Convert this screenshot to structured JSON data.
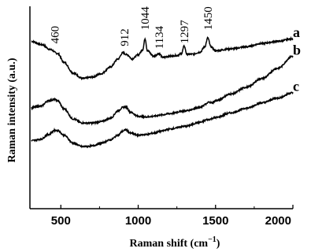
{
  "chart_data": {
    "type": "line",
    "xlabel": "Raman shift (cm",
    "xlabel_sup": "−1",
    "xlabel_close": ")",
    "ylabel": "Raman intensity (a.u.)",
    "xlim": [
      300,
      2000
    ],
    "ylim": [
      0,
      300
    ],
    "x_ticks": [
      {
        "value": 500,
        "label": "500"
      },
      {
        "value": 1000,
        "label": "1000"
      },
      {
        "value": 1500,
        "label": "1500"
      },
      {
        "value": 2000,
        "label": "2000"
      }
    ],
    "grid": false,
    "peak_labels": [
      {
        "x": 460,
        "y": 240,
        "label": "460"
      },
      {
        "x": 912,
        "y": 236,
        "label": "912"
      },
      {
        "x": 1044,
        "y": 260,
        "label": "1044"
      },
      {
        "x": 1134,
        "y": 232,
        "label": "1134"
      },
      {
        "x": 1297,
        "y": 240,
        "label": "1297"
      },
      {
        "x": 1450,
        "y": 260,
        "label": "1450"
      }
    ],
    "series": [
      {
        "name": "a",
        "x": [
          310,
          380,
          430,
          480,
          520,
          580,
          640,
          700,
          760,
          820,
          870,
          900,
          930,
          960,
          1000,
          1030,
          1044,
          1060,
          1100,
          1134,
          1160,
          1200,
          1250,
          1280,
          1297,
          1315,
          1350,
          1400,
          1430,
          1450,
          1470,
          1500,
          1600,
          1700,
          1800,
          1900,
          2000
        ],
        "y": [
          248,
          243,
          236,
          230,
          217,
          201,
          193,
          195,
          200,
          210,
          222,
          231,
          228,
          222,
          228,
          236,
          252,
          234,
          226,
          230,
          224,
          226,
          227,
          230,
          241,
          229,
          229,
          232,
          240,
          253,
          240,
          234,
          237,
          240,
          245,
          248,
          252
        ]
      },
      {
        "name": "b",
        "x": [
          310,
          370,
          420,
          460,
          480,
          520,
          580,
          640,
          700,
          760,
          820,
          870,
          900,
          920,
          950,
          1000,
          1050,
          1100,
          1150,
          1200,
          1300,
          1400,
          1440,
          1455,
          1480,
          1500,
          1600,
          1700,
          1800,
          1900,
          2000
        ],
        "y": [
          150,
          152,
          160,
          162,
          160,
          148,
          133,
          127,
          127,
          129,
          134,
          145,
          150,
          151,
          143,
          137,
          136,
          137,
          139,
          141,
          145,
          150,
          155,
          158,
          157,
          160,
          170,
          180,
          193,
          208,
          226
        ]
      },
      {
        "name": "c",
        "x": [
          310,
          370,
          420,
          460,
          480,
          520,
          580,
          640,
          700,
          760,
          820,
          870,
          900,
          920,
          950,
          1000,
          1050,
          1100,
          1150,
          1200,
          1300,
          1400,
          1450,
          1500,
          1600,
          1700,
          1800,
          1900,
          2000
        ],
        "y": [
          101,
          103,
          110,
          116,
          116,
          109,
          97,
          92,
          93,
          97,
          102,
          109,
          115,
          117,
          112,
          109,
          110,
          112,
          115,
          118,
          122,
          128,
          132,
          135,
          142,
          149,
          157,
          164,
          172
        ]
      }
    ]
  }
}
